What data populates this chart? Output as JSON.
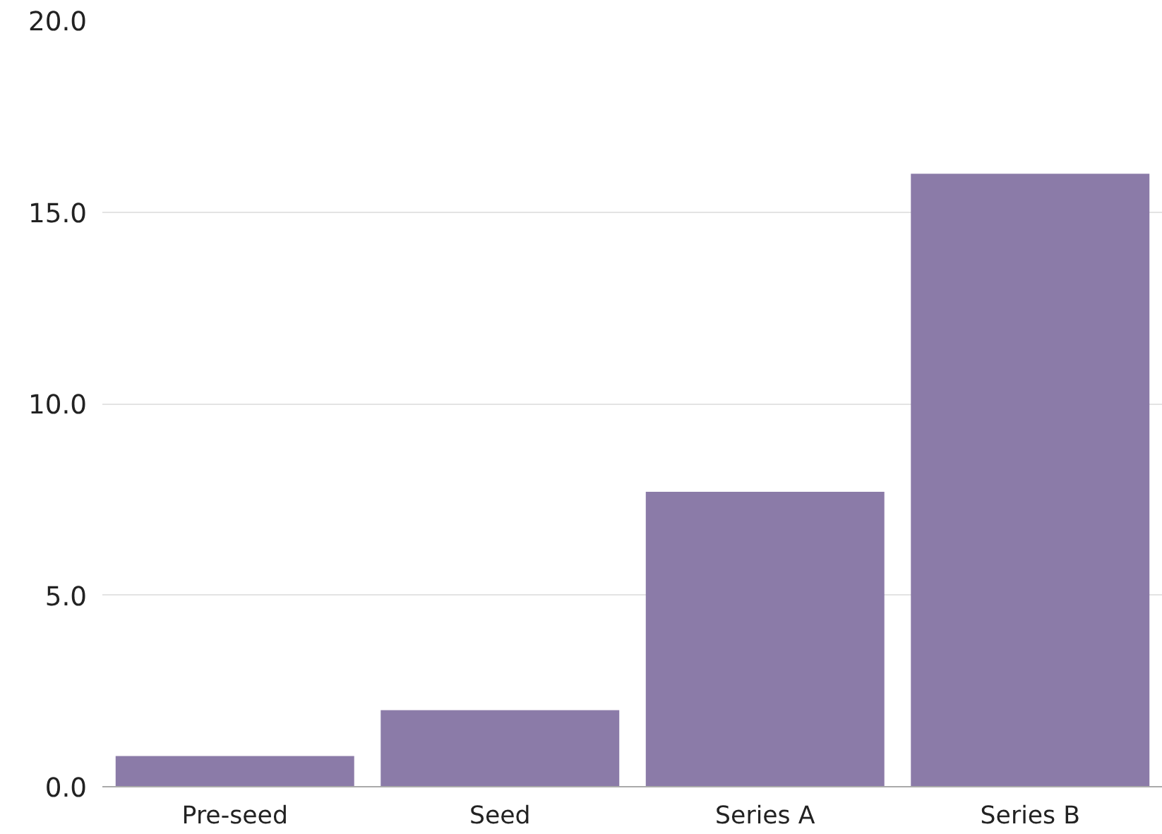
{
  "chart_data": {
    "type": "bar",
    "categories": [
      "Pre-seed",
      "Seed",
      "Series A",
      "Series B"
    ],
    "values": [
      0.8,
      2.0,
      7.7,
      16.0
    ],
    "color": "#8b7ba8",
    "ylim": [
      0,
      20
    ],
    "yticks": [
      {
        "value": 0,
        "label": "0.0"
      },
      {
        "value": 5,
        "label": "5.0"
      },
      {
        "value": 10,
        "label": "10.0"
      },
      {
        "value": 15,
        "label": "15.0"
      },
      {
        "value": 20,
        "label": "20.0"
      }
    ],
    "grid": "y"
  }
}
